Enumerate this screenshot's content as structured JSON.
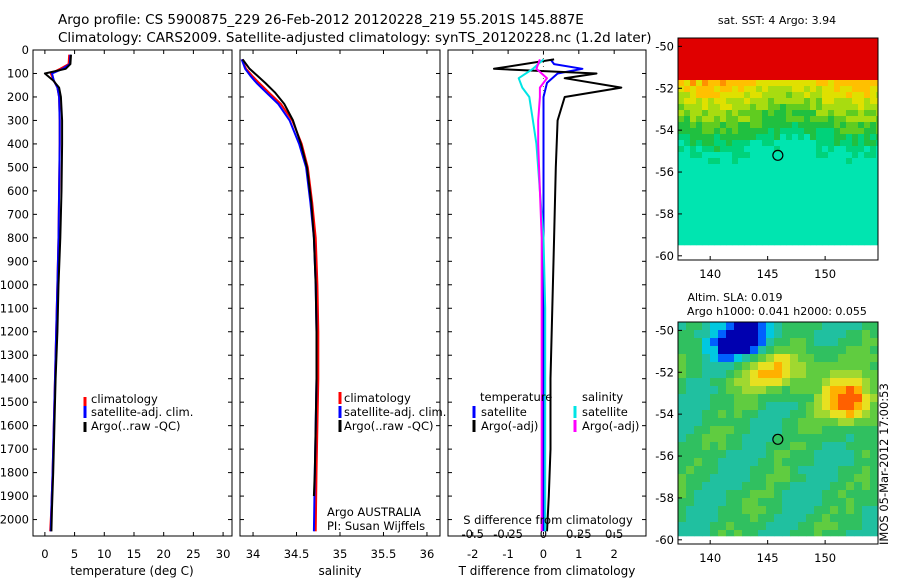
{
  "figure": {
    "title_line1": "Argo profile: CS 5900875_229 26-Feb-2012 20120228_219 55.201S 145.887E",
    "title_line2": "Climatology: CARS2009. Satellite-adjusted climatology: synTS_20120228.nc (1.2d later)",
    "side_stamp": "IMOS 05-Mar-2012 17:00:53",
    "platform_line1": "Argo AUSTRALIA",
    "platform_line2": "PI: Susan Wijffels"
  },
  "colors": {
    "climatology": "#ff0000",
    "satellite": "#0000ff",
    "argo": "#000000",
    "sal_satellite": "#00e5e5",
    "sal_argo": "#ff00ff",
    "zero_line": "#666666"
  },
  "chart_data": [
    {
      "type": "line",
      "id": "temperature",
      "xlabel": "temperature (deg C)",
      "ylabel": "",
      "xlim": [
        -2,
        31.5
      ],
      "ylim": [
        2070,
        0
      ],
      "xticks": [
        0,
        5,
        10,
        15,
        20,
        25,
        30
      ],
      "yticks": [
        0,
        100,
        200,
        300,
        400,
        500,
        600,
        700,
        800,
        900,
        1000,
        1100,
        1200,
        1300,
        1400,
        1500,
        1600,
        1700,
        1800,
        1900,
        2000
      ],
      "legend": [
        "climatology",
        "satellite-adj. clim.",
        "Argo(..raw -QC)"
      ],
      "legend_placement": "lower-right",
      "series": [
        {
          "name": "climatology",
          "color": "#ff0000",
          "x": [
            4.1,
            4.0,
            2.6,
            1.0,
            1.5,
            2.1,
            2.4,
            2.5,
            2.5,
            2.4,
            2.3,
            2.1,
            1.9,
            1.7,
            1.5,
            1.3,
            1.1,
            0.9
          ],
          "y": [
            20,
            60,
            80,
            100,
            130,
            160,
            200,
            300,
            400,
            600,
            800,
            1000,
            1200,
            1400,
            1600,
            1800,
            1950,
            2050
          ]
        },
        {
          "name": "satellite-adj. clim.",
          "color": "#0000ff",
          "x": [
            4.3,
            4.2,
            3.0,
            1.2,
            1.5,
            2.1,
            2.4,
            2.5,
            2.5,
            2.4,
            2.3,
            2.1,
            1.9,
            1.7,
            1.5,
            1.3,
            1.1,
            1.0
          ],
          "y": [
            20,
            60,
            80,
            100,
            130,
            160,
            200,
            300,
            400,
            600,
            800,
            1000,
            1200,
            1400,
            1600,
            1800,
            1950,
            2050
          ]
        },
        {
          "name": "Argo(..raw -QC)",
          "color": "#000000",
          "x": [
            4.4,
            4.3,
            3.5,
            0.0,
            1.4,
            2.4,
            2.7,
            2.9,
            2.9,
            2.8,
            2.6,
            2.3,
            2.1,
            1.8,
            1.6,
            1.4,
            1.2,
            1.1
          ],
          "y": [
            20,
            60,
            80,
            100,
            130,
            160,
            200,
            300,
            400,
            600,
            800,
            1000,
            1200,
            1400,
            1600,
            1800,
            1950,
            2050
          ]
        }
      ]
    },
    {
      "type": "line",
      "id": "salinity",
      "xlabel": "salinity",
      "ylabel": "",
      "xlim": [
        33.85,
        36.15
      ],
      "ylim": [
        2070,
        0
      ],
      "xticks": [
        34,
        34.5,
        35,
        35.5,
        36
      ],
      "legend": [
        "climatology",
        "satellite-adj. clim.",
        "Argo(..raw -QC)"
      ],
      "legend_placement": "lower-right",
      "series": [
        {
          "name": "climatology",
          "color": "#ff0000",
          "x": [
            33.87,
            33.92,
            33.99,
            34.07,
            34.18,
            34.32,
            34.45,
            34.56,
            34.63,
            34.68,
            34.72,
            34.74,
            34.75,
            34.75,
            34.74,
            34.73,
            34.72
          ],
          "y": [
            40,
            80,
            110,
            140,
            180,
            230,
            300,
            400,
            500,
            650,
            800,
            1000,
            1200,
            1400,
            1600,
            1800,
            2050
          ]
        },
        {
          "name": "satellite-adj. clim.",
          "color": "#0000ff",
          "x": [
            33.87,
            33.91,
            33.97,
            34.04,
            34.15,
            34.29,
            34.42,
            34.53,
            34.61,
            34.66,
            34.7,
            34.72,
            34.73,
            34.73,
            34.72,
            34.71,
            34.7
          ],
          "y": [
            40,
            80,
            110,
            140,
            180,
            230,
            300,
            400,
            500,
            650,
            800,
            1000,
            1200,
            1400,
            1600,
            1800,
            2050
          ]
        },
        {
          "name": "Argo(..raw -QC)",
          "color": "#000000",
          "x": [
            33.88,
            33.96,
            34.05,
            34.14,
            34.25,
            34.36,
            34.46,
            34.55,
            34.62,
            34.67,
            34.7,
            34.72,
            34.73,
            34.73,
            34.72,
            34.71,
            34.7
          ],
          "y": [
            40,
            80,
            110,
            140,
            180,
            230,
            300,
            400,
            500,
            650,
            800,
            1000,
            1200,
            1400,
            1600,
            1800,
            1900
          ]
        }
      ]
    },
    {
      "type": "line",
      "id": "difference",
      "xlabel": "T difference from climatology",
      "xlabel_top": "S difference from climatology",
      "xlim": [
        -2.7,
        2.9
      ],
      "ylim": [
        2070,
        0
      ],
      "xticks": [
        -2,
        -1,
        0,
        1,
        2
      ],
      "xtick_labels_top": [
        "-0.5",
        "-0.25",
        "0",
        "0.25",
        "0.5"
      ],
      "xticks_top": [
        -2,
        -1,
        0,
        1,
        2
      ],
      "legend_headers": [
        "temperature",
        "salinity"
      ],
      "legend_left": [
        "satellite",
        "Argo(-adj)"
      ],
      "legend_right": [
        "satellite",
        "Argo(-adj)"
      ],
      "series": [
        {
          "name": "temperature satellite",
          "color": "#0000ff",
          "x": [
            0.2,
            0.3,
            1.1,
            0.4,
            0.1,
            0.0,
            0.0,
            0.0,
            0.0,
            0.0,
            0.0,
            0.0,
            0.0,
            0.0
          ],
          "y": [
            40,
            60,
            80,
            100,
            140,
            200,
            300,
            500,
            800,
            1100,
            1400,
            1700,
            1900,
            2050
          ]
        },
        {
          "name": "temperature Argo(-adj)",
          "color": "#000000",
          "x": [
            0.3,
            -1.4,
            1.5,
            0.6,
            2.2,
            0.6,
            0.4,
            0.35,
            0.3,
            0.25,
            0.2,
            0.2,
            0.15,
            0.1
          ],
          "y": [
            40,
            80,
            100,
            120,
            160,
            200,
            300,
            500,
            800,
            1100,
            1400,
            1700,
            1900,
            2050
          ]
        },
        {
          "name": "salinity satellite",
          "color": "#00e5e5",
          "x": [
            0.0,
            -0.3,
            -0.7,
            -0.6,
            -0.4,
            -0.3,
            -0.2,
            -0.1,
            0.0,
            0.05,
            0.05,
            0.05,
            0.05,
            0.05
          ],
          "y": [
            40,
            80,
            120,
            160,
            200,
            300,
            400,
            600,
            800,
            1100,
            1400,
            1700,
            1900,
            2050
          ]
        },
        {
          "name": "salinity Argo(-adj)",
          "color": "#ff00ff",
          "x": [
            -0.1,
            -0.2,
            0.1,
            -0.1,
            -0.1,
            -0.15,
            -0.15,
            -0.1,
            -0.05,
            -0.05,
            -0.05,
            -0.05,
            -0.05,
            -0.05
          ],
          "y": [
            40,
            80,
            120,
            160,
            200,
            300,
            400,
            600,
            800,
            1100,
            1400,
            1700,
            1900,
            2050
          ]
        }
      ]
    },
    {
      "type": "heatmap",
      "id": "sst_map",
      "title": "sat. SST: 4  Argo: 3.94",
      "xticks": [
        140,
        145,
        150
      ],
      "yticks": [
        -50,
        -52,
        -54,
        -56,
        -58,
        -60
      ],
      "xlim": [
        137.2,
        154.6
      ],
      "ylim": [
        -60.2,
        -49.6
      ],
      "marker": {
        "lon": 145.887,
        "lat": -55.201
      }
    },
    {
      "type": "heatmap",
      "id": "sla_map",
      "title_line1": "Altim. SLA: 0.019",
      "title_line2": "Argo h1000: 0.041 h2000: 0.055",
      "xticks": [
        140,
        145,
        150
      ],
      "yticks": [
        -50,
        -52,
        -54,
        -56,
        -58,
        -60
      ],
      "xlim": [
        137.2,
        154.6
      ],
      "ylim": [
        -60.2,
        -49.6
      ],
      "marker": {
        "lon": 145.887,
        "lat": -55.201
      }
    }
  ]
}
